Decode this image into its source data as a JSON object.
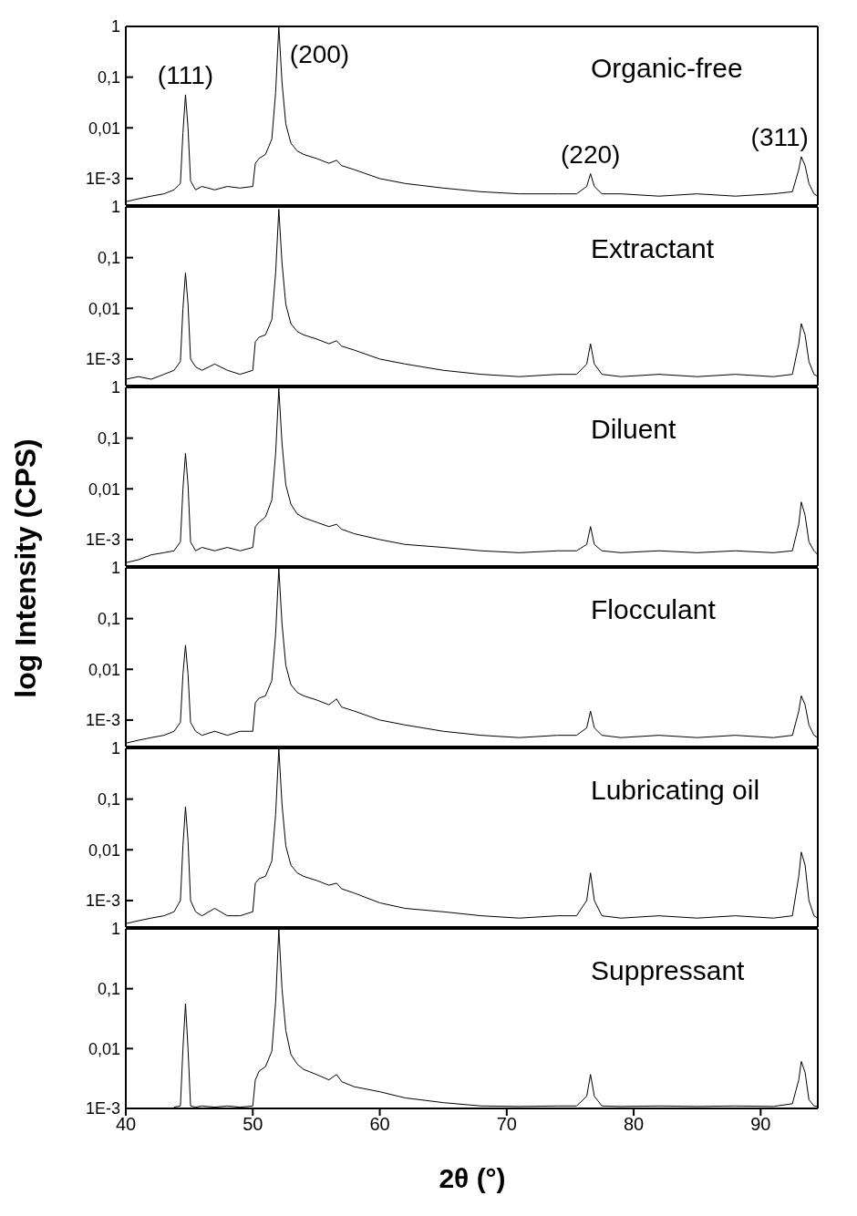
{
  "chart_data": [
    {
      "type": "line",
      "log": true,
      "grid": false,
      "legend": false,
      "marker": "none",
      "line_style": "solid",
      "tick_labels": "y",
      "annotations": [
        "Organic-free",
        {
          "text": "(111)",
          "x": 44.7,
          "y": 0.045
        },
        {
          "text": "(200)",
          "x": 52.05,
          "y": 1
        },
        {
          "text": "(220)",
          "x": 76.6,
          "y": 0.00125
        },
        {
          "text": "(311)",
          "x": 93.2,
          "y": 0.0027
        }
      ],
      "x": [
        40,
        41,
        42,
        43,
        43.8,
        44.3,
        44.5,
        44.7,
        44.9,
        45.1,
        45.5,
        46,
        47,
        48,
        49,
        50,
        50.2,
        50.5,
        51,
        51.5,
        51.8,
        52.05,
        52.3,
        52.6,
        53,
        53.5,
        54,
        55,
        56,
        56.6,
        57,
        58,
        60,
        62,
        65,
        68,
        71,
        74,
        75.5,
        76.3,
        76.6,
        76.9,
        77.5,
        79,
        82,
        85,
        88,
        91,
        92.5,
        93,
        93.2,
        93.5,
        93.8,
        94.2,
        94.5
      ],
      "xlim": [
        40,
        94.5
      ],
      "xticks": [
        40,
        50,
        60,
        70,
        80,
        90
      ],
      "ylim": [
        0.0003,
        1
      ],
      "yticks": [
        {
          "value": 0.001,
          "label": "1E-3"
        },
        {
          "value": 0.01,
          "label": "0,01"
        },
        {
          "value": 0.1,
          "label": "0,1"
        },
        {
          "value": 1,
          "label": "1"
        }
      ],
      "series": [
        {
          "color": "#000000",
          "values": [
            0.00035,
            0.0004,
            0.00045,
            0.0005,
            0.0006,
            0.0008,
            0.008,
            0.045,
            0.01,
            0.0009,
            0.0006,
            0.0007,
            0.0006,
            0.0007,
            0.00065,
            0.0007,
            0.002,
            0.0025,
            0.003,
            0.006,
            0.05,
            1,
            0.08,
            0.012,
            0.005,
            0.0035,
            0.003,
            0.0025,
            0.002,
            0.0023,
            0.0018,
            0.0015,
            0.001,
            0.0008,
            0.00065,
            0.00055,
            0.0005,
            0.0005,
            0.0005,
            0.0007,
            0.00125,
            0.0007,
            0.0005,
            0.0005,
            0.00045,
            0.0005,
            0.00045,
            0.0005,
            0.00055,
            0.0015,
            0.0027,
            0.0018,
            0.0008,
            0.0005,
            0.00045
          ]
        }
      ]
    },
    {
      "type": "line",
      "log": true,
      "grid": false,
      "legend": false,
      "marker": "none",
      "line_style": "solid",
      "tick_labels": "y",
      "annotations": [
        "Extractant"
      ],
      "x": [
        40,
        41,
        42,
        43,
        43.8,
        44.3,
        44.5,
        44.7,
        44.9,
        45.1,
        45.5,
        46,
        47,
        48,
        49,
        50,
        50.2,
        50.5,
        51,
        51.5,
        51.8,
        52.05,
        52.3,
        52.6,
        53,
        53.5,
        54,
        55,
        56,
        56.6,
        57,
        58,
        60,
        62,
        65,
        68,
        71,
        74,
        75.5,
        76.3,
        76.6,
        76.9,
        77.5,
        79,
        82,
        85,
        88,
        91,
        92.5,
        93,
        93.2,
        93.5,
        93.8,
        94.2,
        94.5
      ],
      "xlim": [
        40,
        94.5
      ],
      "xticks": [
        40,
        50,
        60,
        70,
        80,
        90
      ],
      "ylim": [
        0.0003,
        1
      ],
      "yticks": [
        {
          "value": 0.001,
          "label": "1E-3"
        },
        {
          "value": 0.01,
          "label": "0,01"
        },
        {
          "value": 0.1,
          "label": "0,1"
        },
        {
          "value": 1,
          "label": "1"
        }
      ],
      "series": [
        {
          "color": "#000000",
          "values": [
            0.0004,
            0.00045,
            0.0004,
            0.0005,
            0.0006,
            0.0009,
            0.01,
            0.05,
            0.012,
            0.001,
            0.0007,
            0.0006,
            0.0008,
            0.0006,
            0.0005,
            0.0006,
            0.0022,
            0.0027,
            0.003,
            0.006,
            0.05,
            0.9,
            0.08,
            0.012,
            0.005,
            0.0035,
            0.003,
            0.0025,
            0.002,
            0.0023,
            0.0018,
            0.0015,
            0.001,
            0.0008,
            0.0006,
            0.0005,
            0.00045,
            0.0005,
            0.0005,
            0.0008,
            0.002,
            0.0008,
            0.0005,
            0.00045,
            0.0005,
            0.00045,
            0.0005,
            0.00045,
            0.0005,
            0.002,
            0.005,
            0.003,
            0.0009,
            0.0005,
            0.00045
          ]
        }
      ]
    },
    {
      "type": "line",
      "log": true,
      "grid": false,
      "legend": false,
      "marker": "none",
      "line_style": "solid",
      "tick_labels": "y",
      "ylabel": "log Intensity (CPS)",
      "annotations": [
        "Diluent"
      ],
      "x": [
        40,
        41,
        42,
        43,
        43.8,
        44.3,
        44.5,
        44.7,
        44.9,
        45.1,
        45.5,
        46,
        47,
        48,
        49,
        50,
        50.2,
        50.5,
        51,
        51.5,
        51.8,
        52.05,
        52.3,
        52.6,
        53,
        53.5,
        54,
        55,
        56,
        56.6,
        57,
        58,
        60,
        62,
        65,
        68,
        71,
        74,
        75.5,
        76.3,
        76.6,
        76.9,
        77.5,
        79,
        82,
        85,
        88,
        91,
        92.5,
        93,
        93.2,
        93.5,
        93.8,
        94.2,
        94.5
      ],
      "xlim": [
        40,
        94.5
      ],
      "xticks": [
        40,
        50,
        60,
        70,
        80,
        90
      ],
      "ylim": [
        0.0003,
        1
      ],
      "yticks": [
        {
          "value": 0.001,
          "label": "1E-3"
        },
        {
          "value": 0.01,
          "label": "0,01"
        },
        {
          "value": 0.1,
          "label": "0,1"
        },
        {
          "value": 1,
          "label": "1"
        }
      ],
      "series": [
        {
          "color": "#000000",
          "values": [
            0.00035,
            0.0004,
            0.0005,
            0.00055,
            0.0006,
            0.0009,
            0.01,
            0.05,
            0.012,
            0.0009,
            0.0006,
            0.0007,
            0.0006,
            0.0007,
            0.0006,
            0.0007,
            0.0018,
            0.0022,
            0.0028,
            0.006,
            0.05,
            0.95,
            0.08,
            0.012,
            0.005,
            0.0032,
            0.0027,
            0.0022,
            0.0018,
            0.002,
            0.0016,
            0.0013,
            0.001,
            0.0008,
            0.0007,
            0.0006,
            0.00055,
            0.0006,
            0.0006,
            0.0008,
            0.0018,
            0.0008,
            0.0006,
            0.00055,
            0.0006,
            0.00055,
            0.0006,
            0.00055,
            0.0006,
            0.002,
            0.0055,
            0.003,
            0.0009,
            0.0006,
            0.0005
          ]
        }
      ]
    },
    {
      "type": "line",
      "log": true,
      "grid": false,
      "legend": false,
      "marker": "none",
      "line_style": "solid",
      "tick_labels": "y",
      "annotations": [
        "Flocculant"
      ],
      "x": [
        40,
        41,
        42,
        43,
        43.8,
        44.3,
        44.5,
        44.7,
        44.9,
        45.1,
        45.5,
        46,
        47,
        48,
        49,
        50,
        50.2,
        50.5,
        51,
        51.5,
        51.8,
        52.05,
        52.3,
        52.6,
        53,
        53.5,
        54,
        55,
        56,
        56.6,
        57,
        58,
        60,
        62,
        65,
        68,
        71,
        74,
        75.5,
        76.3,
        76.6,
        76.9,
        77.5,
        79,
        82,
        85,
        88,
        91,
        92.5,
        93,
        93.2,
        93.5,
        93.8,
        94.2,
        94.5
      ],
      "xlim": [
        40,
        94.5
      ],
      "xticks": [
        40,
        50,
        60,
        70,
        80,
        90
      ],
      "ylim": [
        0.0003,
        1
      ],
      "yticks": [
        {
          "value": 0.001,
          "label": "1E-3"
        },
        {
          "value": 0.01,
          "label": "0,01"
        },
        {
          "value": 0.1,
          "label": "0,1"
        },
        {
          "value": 1,
          "label": "1"
        }
      ],
      "series": [
        {
          "color": "#000000",
          "values": [
            0.00035,
            0.0004,
            0.00045,
            0.0005,
            0.0006,
            0.0009,
            0.008,
            0.03,
            0.008,
            0.0009,
            0.0006,
            0.0005,
            0.0006,
            0.0005,
            0.0006,
            0.0006,
            0.0022,
            0.0027,
            0.003,
            0.006,
            0.05,
            1,
            0.08,
            0.012,
            0.005,
            0.0035,
            0.003,
            0.0025,
            0.002,
            0.0026,
            0.0018,
            0.0015,
            0.001,
            0.0008,
            0.0006,
            0.0005,
            0.00045,
            0.0005,
            0.0005,
            0.0007,
            0.0015,
            0.0007,
            0.0005,
            0.00045,
            0.0005,
            0.00045,
            0.0005,
            0.00045,
            0.0005,
            0.0015,
            0.003,
            0.002,
            0.0008,
            0.0005,
            0.00045
          ]
        }
      ]
    },
    {
      "type": "line",
      "log": true,
      "grid": false,
      "legend": false,
      "marker": "none",
      "line_style": "solid",
      "tick_labels": "y",
      "annotations": [
        "Lubricating oil"
      ],
      "x": [
        40,
        41,
        42,
        43,
        43.8,
        44.3,
        44.5,
        44.7,
        44.9,
        45.1,
        45.5,
        46,
        47,
        48,
        49,
        50,
        50.2,
        50.5,
        51,
        51.5,
        51.8,
        52.05,
        52.3,
        52.6,
        53,
        53.5,
        54,
        55,
        56,
        56.6,
        57,
        58,
        60,
        62,
        65,
        68,
        71,
        74,
        75.5,
        76.3,
        76.6,
        76.9,
        77.5,
        79,
        82,
        85,
        88,
        91,
        92.5,
        93,
        93.2,
        93.5,
        93.8,
        94.2,
        94.5
      ],
      "xlim": [
        40,
        94.5
      ],
      "xticks": [
        40,
        50,
        60,
        70,
        80,
        90
      ],
      "ylim": [
        0.0003,
        1
      ],
      "yticks": [
        {
          "value": 0.001,
          "label": "1E-3"
        },
        {
          "value": 0.01,
          "label": "0,01"
        },
        {
          "value": 0.1,
          "label": "0,1"
        },
        {
          "value": 1,
          "label": "1"
        }
      ],
      "series": [
        {
          "color": "#000000",
          "values": [
            0.00035,
            0.0004,
            0.00045,
            0.0005,
            0.0006,
            0.001,
            0.012,
            0.07,
            0.015,
            0.001,
            0.0006,
            0.0005,
            0.0007,
            0.0005,
            0.0005,
            0.0006,
            0.0022,
            0.0027,
            0.003,
            0.006,
            0.05,
            1,
            0.08,
            0.012,
            0.005,
            0.0035,
            0.003,
            0.0025,
            0.002,
            0.0022,
            0.0017,
            0.0014,
            0.0009,
            0.0007,
            0.0006,
            0.0005,
            0.00045,
            0.0005,
            0.0005,
            0.001,
            0.0035,
            0.001,
            0.0005,
            0.00045,
            0.0005,
            0.00045,
            0.0005,
            0.00045,
            0.0005,
            0.003,
            0.009,
            0.005,
            0.001,
            0.0005,
            0.00045
          ]
        }
      ]
    },
    {
      "type": "line",
      "log": true,
      "grid": false,
      "legend": false,
      "marker": "none",
      "line_style": "solid",
      "xlabel": "2θ (°)",
      "annotations": [
        "Suppressant"
      ],
      "x": [
        43.8,
        44.3,
        44.5,
        44.7,
        44.9,
        45.1,
        45.5,
        46,
        47,
        48,
        49,
        50,
        50.2,
        50.5,
        51,
        51.5,
        51.8,
        52.05,
        52.3,
        52.6,
        53,
        53.5,
        54,
        55,
        56,
        56.6,
        57,
        58,
        60,
        62,
        65,
        68,
        71,
        74,
        75.5,
        76.3,
        76.6,
        76.9,
        77.5,
        79,
        82,
        85,
        88,
        91,
        92.5,
        93,
        93.2,
        93.5,
        93.8,
        94.2,
        94.5
      ],
      "xlim": [
        40,
        94.5
      ],
      "xticks": [
        40,
        50,
        60,
        70,
        80,
        90
      ],
      "ylim": [
        0.001,
        1
      ],
      "yticks": [
        {
          "value": 0.001,
          "label": "1E-3"
        },
        {
          "value": 0.01,
          "label": "0,01"
        },
        {
          "value": 0.1,
          "label": "0,1"
        },
        {
          "value": 1,
          "label": "1"
        }
      ],
      "series": [
        {
          "color": "#000000",
          "values": [
            0.00105,
            0.0011,
            0.01,
            0.056,
            0.01,
            0.0011,
            0.00105,
            0.0011,
            0.00105,
            0.0011,
            0.00105,
            0.0011,
            0.003,
            0.0042,
            0.005,
            0.009,
            0.06,
            1,
            0.1,
            0.02,
            0.008,
            0.0055,
            0.0045,
            0.0037,
            0.003,
            0.0037,
            0.0028,
            0.0023,
            0.0019,
            0.0015,
            0.00125,
            0.0011,
            0.00108,
            0.0011,
            0.0011,
            0.0016,
            0.0037,
            0.0016,
            0.0011,
            0.00108,
            0.0011,
            0.00108,
            0.0011,
            0.00108,
            0.0012,
            0.003,
            0.0061,
            0.004,
            0.0014,
            0.0011,
            0.00108
          ]
        }
      ]
    }
  ]
}
